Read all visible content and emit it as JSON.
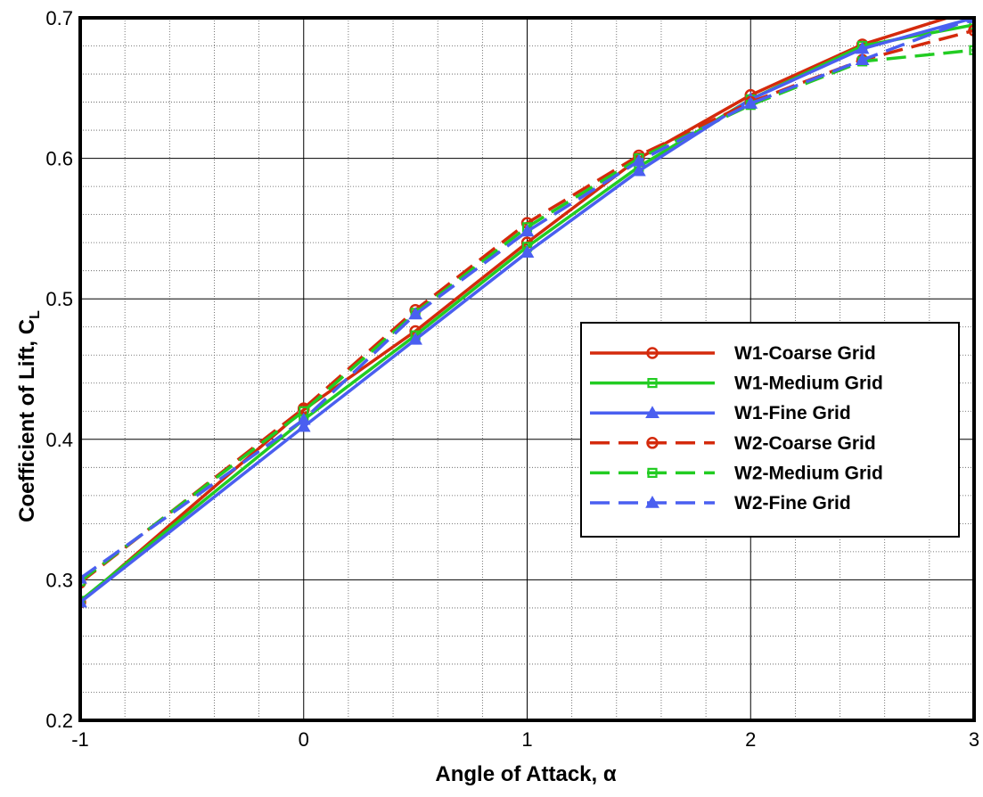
{
  "chart_data": {
    "type": "line",
    "xlabel": "Angle of Attack, α",
    "ylabel": "Coefficient of Lift, C",
    "ylabel_sub": "L",
    "xlim": [
      -1,
      3
    ],
    "ylim": [
      0.2,
      0.7
    ],
    "x_ticks": [
      -1,
      0,
      1,
      2,
      3
    ],
    "y_ticks": [
      0.2,
      0.3,
      0.4,
      0.5,
      0.6,
      0.7
    ],
    "x_tick_labels": [
      "-1",
      "0",
      "1",
      "2",
      "3"
    ],
    "y_tick_labels": [
      "0.2",
      "0.3",
      "0.4",
      "0.5",
      "0.6",
      "0.7"
    ],
    "grid": true,
    "minor_grid": true,
    "legend_position": "right-center",
    "x": [
      -1,
      0,
      0.5,
      1,
      1.5,
      2,
      2.5,
      3
    ],
    "series": [
      {
        "name": "W1-Coarse Grid",
        "color": "#d42a0c",
        "dash": "solid",
        "marker": "circle",
        "values": [
          0.284,
          0.421,
          0.477,
          0.54,
          0.6,
          0.645,
          0.681,
          0.706
        ]
      },
      {
        "name": "W1-Medium Grid",
        "color": "#22cc22",
        "dash": "solid",
        "marker": "square",
        "values": [
          0.285,
          0.414,
          0.474,
          0.537,
          0.594,
          0.642,
          0.68,
          0.695
        ]
      },
      {
        "name": "W1-Fine Grid",
        "color": "#4a5ff0",
        "dash": "solid",
        "marker": "triangle",
        "values": [
          0.284,
          0.409,
          0.471,
          0.533,
          0.591,
          0.642,
          0.678,
          0.7
        ]
      },
      {
        "name": "W2-Coarse Grid",
        "color": "#d42a0c",
        "dash": "dashed",
        "marker": "circle",
        "values": [
          0.298,
          0.422,
          0.492,
          0.554,
          0.602,
          0.64,
          0.67,
          0.691
        ]
      },
      {
        "name": "W2-Medium Grid",
        "color": "#22cc22",
        "dash": "dashed",
        "marker": "square",
        "values": [
          0.299,
          0.42,
          0.49,
          0.551,
          0.6,
          0.638,
          0.669,
          0.677
        ]
      },
      {
        "name": "W2-Fine Grid",
        "color": "#4a5ff0",
        "dash": "dashed",
        "marker": "triangle",
        "values": [
          0.301,
          0.414,
          0.489,
          0.548,
          0.598,
          0.639,
          0.67,
          0.7
        ]
      }
    ]
  }
}
